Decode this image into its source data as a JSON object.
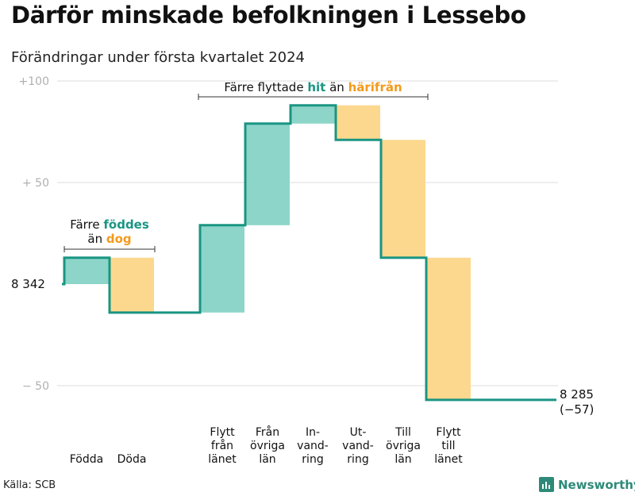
{
  "title": "Därför minskade befolkningen i Lessebo",
  "subtitle": "Förändringar under första kvartalet 2024",
  "source": "Källa: SCB",
  "logo_text": "Newsworthy",
  "colors": {
    "increase": "#8dd5c9",
    "decrease": "#fcd88e",
    "line": "#1a9583",
    "teal_text": "#1a9583",
    "orange_text": "#f29a1c",
    "grid": "#dedede"
  },
  "chart_data": {
    "type": "waterfall",
    "title": "Därför minskade befolkningen i Lessebo",
    "subtitle": "Förändringar under första kvartalet 2024",
    "start_value": 8342,
    "start_label": "8 342",
    "end_value": 8285,
    "end_label": "8 285",
    "end_change_label": "(−57)",
    "ylim": [
      -57,
      100
    ],
    "y_ticks": [
      {
        "value": 100,
        "label": "+100"
      },
      {
        "value": 50,
        "label": "+  50"
      },
      {
        "value": -50,
        "label": "−  50"
      }
    ],
    "steps": [
      {
        "label": "Födda",
        "value": 13
      },
      {
        "label": "Döda",
        "value": -27
      },
      {
        "label": "",
        "value": 0
      },
      {
        "label": "Flytt\nfrån\nlänet",
        "value": 43
      },
      {
        "label": "Från\növriga\nlän",
        "value": 50
      },
      {
        "label": "In-\nvand-\nring",
        "value": 9
      },
      {
        "label": "Ut-\nvand-\nring",
        "value": -17
      },
      {
        "label": "Till\növriga\nlän",
        "value": -58
      },
      {
        "label": "Flytt\ntill\nlänet",
        "value": -70
      }
    ],
    "annotations": [
      {
        "parts": [
          {
            "text": "Färre ",
            "style": "normal"
          },
          {
            "text": "föddes",
            "style": "teal"
          }
        ],
        "parts2": [
          {
            "text": "än ",
            "style": "normal"
          },
          {
            "text": "dog",
            "style": "orange"
          }
        ],
        "from_step": 0,
        "to_step": 1
      },
      {
        "parts": [
          {
            "text": "Färre flyttade ",
            "style": "normal"
          },
          {
            "text": "hit",
            "style": "teal"
          },
          {
            "text": " än ",
            "style": "normal"
          },
          {
            "text": "härifrån",
            "style": "orange"
          }
        ],
        "from_step": 3,
        "to_step": 7
      }
    ]
  }
}
